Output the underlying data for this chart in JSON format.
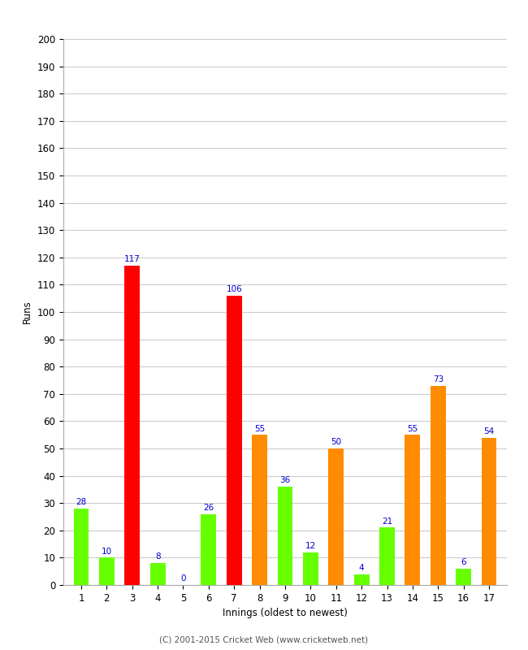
{
  "xlabel": "Innings (oldest to newest)",
  "ylabel": "Runs",
  "values": [
    28,
    10,
    117,
    8,
    0,
    26,
    106,
    55,
    36,
    12,
    50,
    4,
    21,
    55,
    73,
    6,
    54
  ],
  "innings": [
    1,
    2,
    3,
    4,
    5,
    6,
    7,
    8,
    9,
    10,
    11,
    12,
    13,
    14,
    15,
    16,
    17
  ],
  "colors": [
    "#66ff00",
    "#66ff00",
    "#ff0000",
    "#66ff00",
    "#66ff00",
    "#66ff00",
    "#ff0000",
    "#ff8c00",
    "#66ff00",
    "#66ff00",
    "#ff8c00",
    "#66ff00",
    "#66ff00",
    "#ff8c00",
    "#ff8c00",
    "#66ff00",
    "#ff8c00"
  ],
  "ylim": [
    0,
    200
  ],
  "yticks": [
    0,
    10,
    20,
    30,
    40,
    50,
    60,
    70,
    80,
    90,
    100,
    110,
    120,
    130,
    140,
    150,
    160,
    170,
    180,
    190,
    200
  ],
  "label_color": "#0000cc",
  "label_fontsize": 7.5,
  "axis_fontsize": 8.5,
  "background_color": "#ffffff",
  "grid_color": "#cccccc",
  "footer": "(C) 2001-2015 Cricket Web (www.cricketweb.net)"
}
